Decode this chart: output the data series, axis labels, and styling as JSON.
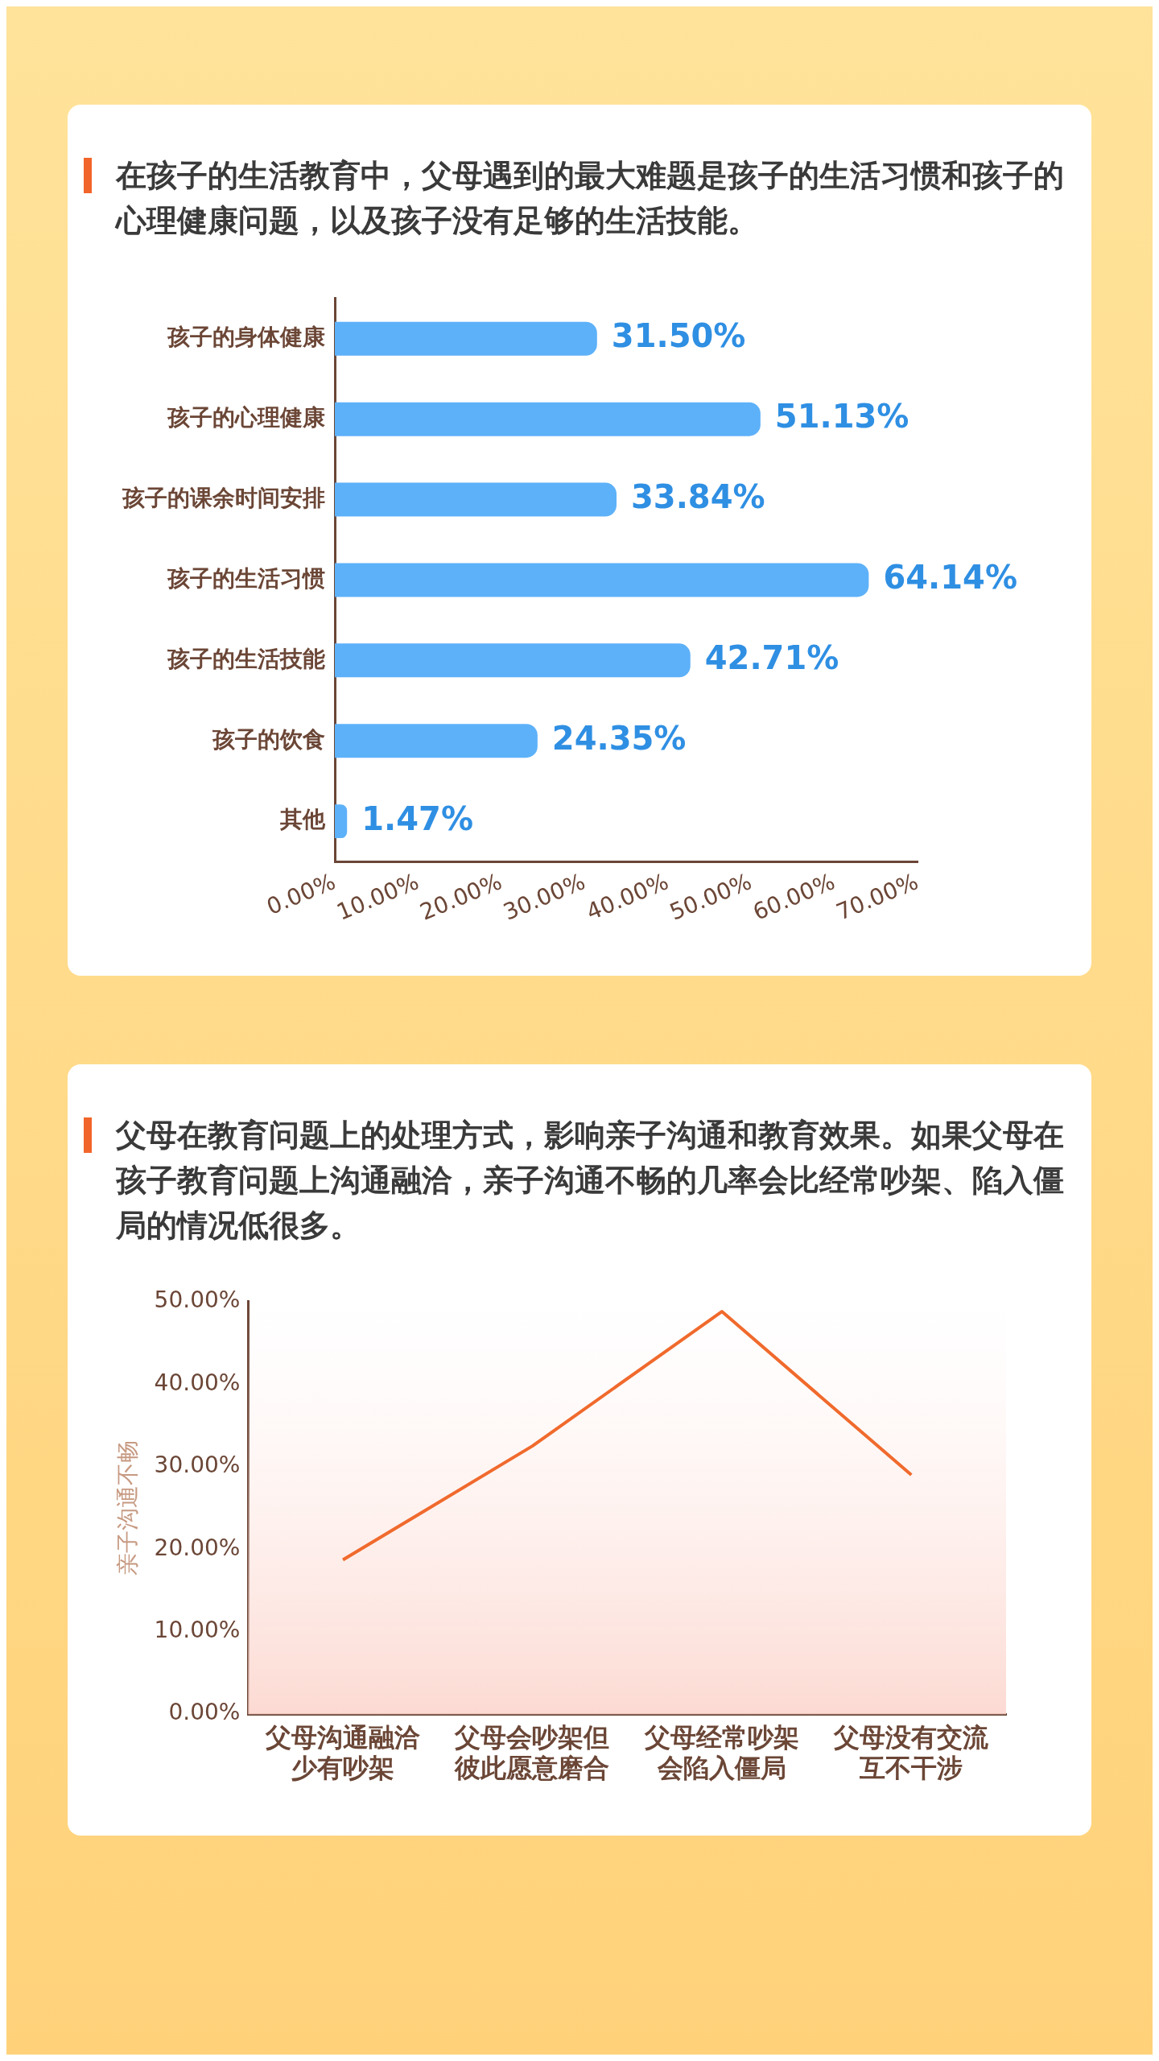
{
  "chart_data": [
    {
      "type": "bar",
      "title": "在孩子的生活教育中，父母遇到的最大难题是孩子的生活习惯和孩子的心理健康问题，以及孩子没有足够的生活技能。",
      "orientation": "horizontal",
      "categories": [
        "孩子的身体健康",
        "孩子的心理健康",
        "孩子的课余时间安排",
        "孩子的生活习惯",
        "孩子的生活技能",
        "孩子的饮食",
        "其他"
      ],
      "values": [
        31.5,
        51.13,
        33.84,
        64.14,
        42.71,
        24.35,
        1.47
      ],
      "value_labels": [
        "31.50%",
        "51.13%",
        "33.84%",
        "64.14%",
        "42.71%",
        "24.35%",
        "1.47%"
      ],
      "color": "#5db1f9",
      "xlim": [
        0,
        70
      ],
      "xticks": [
        {
          "value": 0,
          "label": "0.00%"
        },
        {
          "value": 10,
          "label": "10.00%"
        },
        {
          "value": 20,
          "label": "20.00%"
        },
        {
          "value": 30,
          "label": "30.00%"
        },
        {
          "value": 40,
          "label": "40.00%"
        },
        {
          "value": 50,
          "label": "50.00%"
        },
        {
          "value": 60,
          "label": "60.00%"
        },
        {
          "value": 70,
          "label": "70.00%"
        }
      ]
    },
    {
      "type": "line",
      "title": "父母在教育问题上的处理方式，影响亲子沟通和教育效果。如果父母在孩子教育问题上沟通融洽，亲子沟通不畅的几率会比经常吵架、陷入僵局的情况低很多。",
      "ylabel": "亲子沟通不畅",
      "categories": [
        "父母沟通融洽少有吵架",
        "父母会吵架但彼此愿意磨合",
        "父母经常吵架会陷入僵局",
        "父母没有交流互不干涉"
      ],
      "values": [
        18.7,
        32.5,
        48.8,
        29.0
      ],
      "color": "#f06a2d",
      "marker": "none",
      "ylim": [
        0,
        50
      ],
      "yticks": [
        {
          "value": 0,
          "label": "0.00%"
        },
        {
          "value": 10,
          "label": "10.00%"
        },
        {
          "value": 20,
          "label": "20.00%"
        },
        {
          "value": 30,
          "label": "30.00%"
        },
        {
          "value": 40,
          "label": "40.00%"
        },
        {
          "value": 50,
          "label": "50.00%"
        }
      ]
    }
  ]
}
